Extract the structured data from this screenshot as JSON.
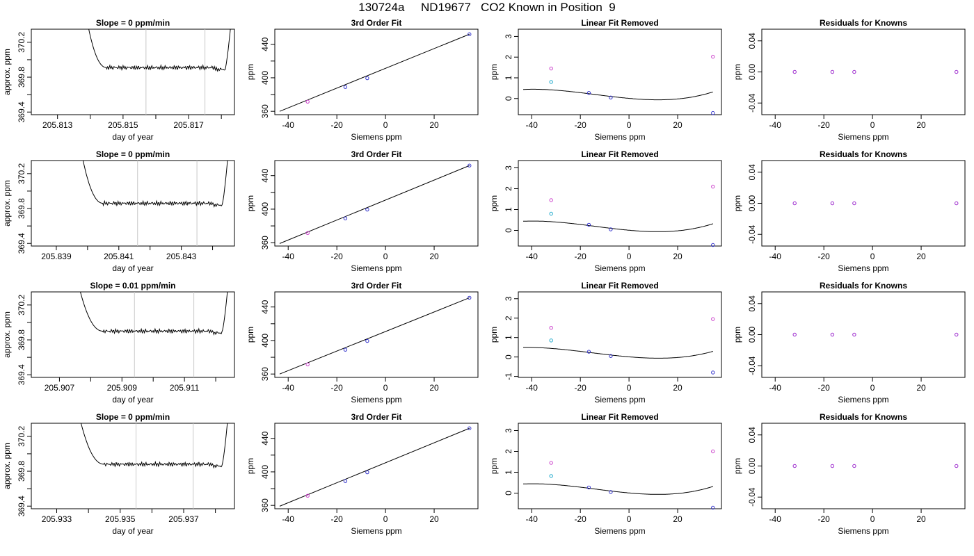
{
  "page": {
    "title": "130724a     ND19677   CO2 Known in Position  9"
  },
  "rows": [
    {
      "timeseries": {
        "title": "Slope =  0  ppm/min",
        "xlabel": "day of year",
        "ylabel": "approx. ppm",
        "xlim": [
          205.8122,
          205.8184
        ],
        "ylim": [
          369.37,
          370.35
        ],
        "xticks": [
          205.813,
          205.814,
          205.815,
          205.816,
          205.817,
          205.818
        ],
        "xticklabels": [
          "205.813",
          "",
          "205.815",
          "",
          "205.817",
          ""
        ],
        "yticks": [
          369.4,
          369.6,
          369.8,
          370.0,
          370.2
        ],
        "yticklabels": [
          "369.4",
          "",
          "369.8",
          "",
          "370.2"
        ],
        "marker_lines": [
          205.8157,
          205.8175
        ],
        "trace_start": 205.8139,
        "trace_end": 205.8183,
        "plateau_start": 205.8145,
        "plateau_end": 205.8181,
        "baseline": 369.91,
        "end_dip": 369.87
      },
      "fit": {
        "title": "3rd Order Fit",
        "xlabel": "Siemens ppm",
        "ylabel": "ppm",
        "xlim": [
          -45.5,
          38
        ],
        "ylim": [
          356,
          458
        ],
        "xticks": [
          -40,
          -20,
          0,
          20
        ],
        "yticks": [
          360,
          380,
          400,
          420,
          440
        ],
        "yticklabels": [
          "360",
          "",
          "400",
          "",
          "440"
        ],
        "line_x": [
          -43.5,
          34.5
        ],
        "line_y": [
          360,
          452
        ],
        "points": [
          {
            "x": -32.0,
            "y": 371.5,
            "color": "#cc44cc"
          },
          {
            "x": -16.5,
            "y": 389.0,
            "color": "#3333cc"
          },
          {
            "x": -7.5,
            "y": 399.5,
            "color": "#3333cc"
          },
          {
            "x": 34.5,
            "y": 452.0,
            "color": "#3333cc"
          }
        ]
      },
      "linfit": {
        "title": "Linear Fit Removed",
        "xlabel": "Siemens ppm",
        "ylabel": "ppm",
        "xlim": [
          -45.5,
          38
        ],
        "ylim": [
          -0.78,
          3.35
        ],
        "xticks": [
          -40,
          -20,
          0,
          20
        ],
        "yticks": [
          0,
          1,
          2,
          3
        ],
        "curve_coeffs": [
          0.008,
          -0.0106,
          0.00031,
          7.5e-06
        ],
        "curve_xrange": [
          -43.5,
          34.5
        ],
        "points": [
          {
            "x": -32.0,
            "y": 1.45,
            "color": "#cc44cc"
          },
          {
            "x": -32.0,
            "y": 0.8,
            "color": "#22aacc"
          },
          {
            "x": -16.5,
            "y": 0.27,
            "color": "#3333cc"
          },
          {
            "x": -7.5,
            "y": 0.05,
            "color": "#3333cc"
          },
          {
            "x": 34.5,
            "y": -0.7,
            "color": "#3333cc"
          },
          {
            "x": 34.5,
            "y": 2.02,
            "color": "#cc44cc"
          }
        ]
      },
      "resid": {
        "title": "Residuals for Knowns",
        "xlabel": "Siemens ppm",
        "ylabel": "ppm",
        "xlim": [
          -45.5,
          38
        ],
        "ylim": [
          -0.055,
          0.055
        ],
        "xticks": [
          -40,
          -20,
          0,
          20
        ],
        "yticks": [
          -0.04,
          0,
          0.04
        ],
        "yticklabels": [
          "-0.04",
          "0.00",
          "0.04"
        ],
        "points": [
          {
            "x": -32.0,
            "y": 0,
            "color": "#9922cc"
          },
          {
            "x": -16.5,
            "y": 0,
            "color": "#9922cc"
          },
          {
            "x": -7.5,
            "y": 0,
            "color": "#9922cc"
          },
          {
            "x": 34.5,
            "y": 0,
            "color": "#9922cc"
          }
        ]
      }
    },
    {
      "timeseries": {
        "title": "Slope =  0  ppm/min",
        "xlabel": "day of year",
        "ylabel": "approx. ppm",
        "xlim": [
          205.8382,
          205.8447
        ],
        "ylim": [
          369.37,
          370.35
        ],
        "xticks": [
          205.839,
          205.84,
          205.841,
          205.842,
          205.843,
          205.844
        ],
        "xticklabels": [
          "205.839",
          "",
          "205.841",
          "",
          "205.843",
          ""
        ],
        "yticks": [
          369.4,
          369.6,
          369.8,
          370.0,
          370.2
        ],
        "yticklabels": [
          "369.4",
          "",
          "369.8",
          "",
          "370.2"
        ],
        "marker_lines": [
          205.8416,
          205.8435
        ],
        "trace_start": 205.8398,
        "trace_end": 205.8445,
        "plateau_start": 205.8405,
        "plateau_end": 205.8443,
        "baseline": 369.86,
        "end_dip": 369.84
      },
      "fit": {
        "title": "3rd Order Fit",
        "xlabel": "Siemens ppm",
        "ylabel": "ppm",
        "xlim": [
          -45.5,
          38
        ],
        "ylim": [
          356,
          458
        ],
        "xticks": [
          -40,
          -20,
          0,
          20
        ],
        "yticks": [
          360,
          380,
          400,
          420,
          440
        ],
        "yticklabels": [
          "360",
          "",
          "400",
          "",
          "440"
        ],
        "line_x": [
          -43.5,
          34.5
        ],
        "line_y": [
          359,
          452
        ],
        "points": [
          {
            "x": -32.0,
            "y": 371.5,
            "color": "#cc44cc"
          },
          {
            "x": -16.5,
            "y": 389.0,
            "color": "#3333cc"
          },
          {
            "x": -7.5,
            "y": 399.5,
            "color": "#3333cc"
          },
          {
            "x": 34.5,
            "y": 452.0,
            "color": "#3333cc"
          }
        ]
      },
      "linfit": {
        "title": "Linear Fit Removed",
        "xlabel": "Siemens ppm",
        "ylabel": "ppm",
        "xlim": [
          -45.5,
          38
        ],
        "ylim": [
          -0.75,
          3.35
        ],
        "xticks": [
          -40,
          -20,
          0,
          20
        ],
        "yticks": [
          0,
          1,
          2,
          3
        ],
        "curve_coeffs": [
          0.008,
          -0.0106,
          0.00031,
          7.5e-06
        ],
        "curve_xrange": [
          -43.5,
          34.5
        ],
        "points": [
          {
            "x": -32.0,
            "y": 1.45,
            "color": "#cc44cc"
          },
          {
            "x": -32.0,
            "y": 0.8,
            "color": "#22aacc"
          },
          {
            "x": -16.5,
            "y": 0.27,
            "color": "#3333cc"
          },
          {
            "x": -7.5,
            "y": 0.05,
            "color": "#3333cc"
          },
          {
            "x": 34.5,
            "y": -0.7,
            "color": "#3333cc"
          },
          {
            "x": 34.5,
            "y": 2.1,
            "color": "#cc44cc"
          }
        ]
      },
      "resid": {
        "title": "Residuals for Knowns",
        "xlabel": "Siemens ppm",
        "ylabel": "ppm",
        "xlim": [
          -45.5,
          38
        ],
        "ylim": [
          -0.055,
          0.055
        ],
        "xticks": [
          -40,
          -20,
          0,
          20
        ],
        "yticks": [
          -0.04,
          0,
          0.04
        ],
        "yticklabels": [
          "-0.04",
          "0.00",
          "0.04"
        ],
        "points": [
          {
            "x": -32.0,
            "y": 0,
            "color": "#9922cc"
          },
          {
            "x": -16.5,
            "y": 0,
            "color": "#9922cc"
          },
          {
            "x": -7.5,
            "y": 0,
            "color": "#9922cc"
          },
          {
            "x": 34.5,
            "y": 0,
            "color": "#9922cc"
          }
        ]
      }
    },
    {
      "timeseries": {
        "title": "Slope =  0.01  ppm/min",
        "xlabel": "day of year",
        "ylabel": "approx. ppm",
        "xlim": [
          205.9061,
          205.9126
        ],
        "ylim": [
          369.37,
          370.35
        ],
        "xticks": [
          205.907,
          205.908,
          205.909,
          205.91,
          205.911,
          205.912
        ],
        "xticklabels": [
          "205.907",
          "",
          "205.909",
          "",
          "205.911",
          ""
        ],
        "yticks": [
          369.4,
          369.6,
          369.8,
          370.0,
          370.2
        ],
        "yticklabels": [
          "369.4",
          "",
          "369.8",
          "",
          "370.2"
        ],
        "marker_lines": [
          205.9094,
          205.9113
        ],
        "trace_start": 205.9076,
        "trace_end": 205.9124,
        "plateau_start": 205.9084,
        "plateau_end": 205.9122,
        "baseline": 369.9,
        "end_dip": 369.89
      },
      "fit": {
        "title": "3rd Order Fit",
        "xlabel": "Siemens ppm",
        "ylabel": "ppm",
        "xlim": [
          -45.5,
          38
        ],
        "ylim": [
          356,
          458
        ],
        "xticks": [
          -40,
          -20,
          0,
          20
        ],
        "yticks": [
          360,
          380,
          400,
          420,
          440
        ],
        "yticklabels": [
          "360",
          "",
          "400",
          "",
          "440"
        ],
        "line_x": [
          -43.5,
          34.5
        ],
        "line_y": [
          360,
          451
        ],
        "points": [
          {
            "x": -32.0,
            "y": 371.5,
            "color": "#cc44cc"
          },
          {
            "x": -16.5,
            "y": 389.0,
            "color": "#3333cc"
          },
          {
            "x": -7.5,
            "y": 399.5,
            "color": "#3333cc"
          },
          {
            "x": 34.5,
            "y": 451.0,
            "color": "#3333cc"
          }
        ]
      },
      "linfit": {
        "title": "Linear Fit Removed",
        "xlabel": "Siemens ppm",
        "ylabel": "ppm",
        "xlim": [
          -45.5,
          38
        ],
        "ylim": [
          -1.05,
          3.35
        ],
        "xticks": [
          -40,
          -20,
          0,
          20
        ],
        "yticks": [
          -1,
          0,
          1,
          2,
          3
        ],
        "curve_coeffs": [
          0.008,
          -0.0106,
          0.00031,
          6.8e-06
        ],
        "curve_xrange": [
          -43.5,
          34.5
        ],
        "points": [
          {
            "x": -32.0,
            "y": 1.5,
            "color": "#cc44cc"
          },
          {
            "x": -32.0,
            "y": 0.85,
            "color": "#22aacc"
          },
          {
            "x": -16.5,
            "y": 0.27,
            "color": "#3333cc"
          },
          {
            "x": -7.5,
            "y": 0.05,
            "color": "#3333cc"
          },
          {
            "x": 34.5,
            "y": -0.8,
            "color": "#3333cc"
          },
          {
            "x": 34.5,
            "y": 1.95,
            "color": "#cc44cc"
          }
        ]
      },
      "resid": {
        "title": "Residuals for Knowns",
        "xlabel": "Siemens ppm",
        "ylabel": "ppm",
        "xlim": [
          -45.5,
          38
        ],
        "ylim": [
          -0.055,
          0.055
        ],
        "xticks": [
          -40,
          -20,
          0,
          20
        ],
        "yticks": [
          -0.04,
          0,
          0.04
        ],
        "yticklabels": [
          "-0.04",
          "0.00",
          "0.04"
        ],
        "points": [
          {
            "x": -32.0,
            "y": 0,
            "color": "#9922cc"
          },
          {
            "x": -16.5,
            "y": 0,
            "color": "#9922cc"
          },
          {
            "x": -7.5,
            "y": 0,
            "color": "#9922cc"
          },
          {
            "x": 34.5,
            "y": 0,
            "color": "#9922cc"
          }
        ]
      }
    },
    {
      "timeseries": {
        "title": "Slope =  0  ppm/min",
        "xlabel": "day of year",
        "ylabel": "approx. ppm",
        "xlim": [
          205.9322,
          205.9386
        ],
        "ylim": [
          369.37,
          370.35
        ],
        "xticks": [
          205.933,
          205.934,
          205.935,
          205.936,
          205.937,
          205.938
        ],
        "xticklabels": [
          "205.933",
          "",
          "205.935",
          "",
          "205.937",
          ""
        ],
        "yticks": [
          369.4,
          369.6,
          369.8,
          370.0,
          370.2
        ],
        "yticklabels": [
          "369.4",
          "",
          "369.8",
          "",
          "370.2"
        ],
        "marker_lines": [
          205.9355,
          205.9373
        ],
        "trace_start": 205.9337,
        "trace_end": 205.9384,
        "plateau_start": 205.9345,
        "plateau_end": 205.9382,
        "baseline": 369.88,
        "end_dip": 369.86
      },
      "fit": {
        "title": "3rd Order Fit",
        "xlabel": "Siemens ppm",
        "ylabel": "ppm",
        "xlim": [
          -45.5,
          38
        ],
        "ylim": [
          356,
          458
        ],
        "xticks": [
          -40,
          -20,
          0,
          20
        ],
        "yticks": [
          360,
          380,
          400,
          420,
          440
        ],
        "yticklabels": [
          "360",
          "",
          "400",
          "",
          "440"
        ],
        "line_x": [
          -43.5,
          34.5
        ],
        "line_y": [
          359,
          452
        ],
        "points": [
          {
            "x": -32.0,
            "y": 371.5,
            "color": "#cc44cc"
          },
          {
            "x": -16.5,
            "y": 389.0,
            "color": "#3333cc"
          },
          {
            "x": -7.5,
            "y": 399.5,
            "color": "#3333cc"
          },
          {
            "x": 34.5,
            "y": 452.0,
            "color": "#3333cc"
          }
        ]
      },
      "linfit": {
        "title": "Linear Fit Removed",
        "xlabel": "Siemens ppm",
        "ylabel": "ppm",
        "xlim": [
          -45.5,
          38
        ],
        "ylim": [
          -0.75,
          3.35
        ],
        "xticks": [
          -40,
          -20,
          0,
          20
        ],
        "yticks": [
          0,
          1,
          2,
          3
        ],
        "curve_coeffs": [
          0.008,
          -0.0106,
          0.00031,
          7.5e-06
        ],
        "curve_xrange": [
          -43.5,
          34.5
        ],
        "points": [
          {
            "x": -32.0,
            "y": 1.45,
            "color": "#cc44cc"
          },
          {
            "x": -32.0,
            "y": 0.82,
            "color": "#22aacc"
          },
          {
            "x": -16.5,
            "y": 0.27,
            "color": "#3333cc"
          },
          {
            "x": -7.5,
            "y": 0.05,
            "color": "#3333cc"
          },
          {
            "x": 34.5,
            "y": -0.7,
            "color": "#3333cc"
          },
          {
            "x": 34.5,
            "y": 2.0,
            "color": "#cc44cc"
          }
        ]
      },
      "resid": {
        "title": "Residuals for Knowns",
        "xlabel": "Siemens ppm",
        "ylabel": "ppm",
        "xlim": [
          -45.5,
          38
        ],
        "ylim": [
          -0.055,
          0.055
        ],
        "xticks": [
          -40,
          -20,
          0,
          20
        ],
        "yticks": [
          -0.04,
          0,
          0.04
        ],
        "yticklabels": [
          "-0.04",
          "0.00",
          "0.04"
        ],
        "points": [
          {
            "x": -32.0,
            "y": 0,
            "color": "#9922cc"
          },
          {
            "x": -16.5,
            "y": 0,
            "color": "#9922cc"
          },
          {
            "x": -7.5,
            "y": 0,
            "color": "#9922cc"
          },
          {
            "x": 34.5,
            "y": 0,
            "color": "#9922cc"
          }
        ]
      }
    }
  ],
  "chart_data": [
    {
      "type": "line",
      "title": "Slope =  0  ppm/min",
      "xlabel": "day of year",
      "ylabel": "approx. ppm",
      "xlim": [
        205.8122,
        205.8184
      ],
      "ylim": [
        369.37,
        370.35
      ],
      "grid": false
    },
    {
      "type": "scatter",
      "title": "3rd Order Fit",
      "xlabel": "Siemens ppm",
      "ylabel": "ppm",
      "x": [
        -32.0,
        -16.5,
        -7.5,
        34.5
      ],
      "y": [
        371.5,
        389.0,
        399.5,
        452.0
      ],
      "xlim": [
        -45.5,
        38
      ],
      "ylim": [
        356,
        458
      ]
    },
    {
      "type": "scatter",
      "title": "Linear Fit Removed",
      "xlabel": "Siemens ppm",
      "ylabel": "ppm",
      "x": [
        -32.0,
        -32.0,
        -16.5,
        -7.5,
        34.5,
        34.5
      ],
      "y": [
        1.45,
        0.8,
        0.27,
        0.05,
        -0.7,
        2.02
      ],
      "xlim": [
        -45.5,
        38
      ],
      "ylim": [
        -0.78,
        3.35
      ]
    },
    {
      "type": "scatter",
      "title": "Residuals for Knowns",
      "xlabel": "Siemens ppm",
      "ylabel": "ppm",
      "x": [
        -32.0,
        -16.5,
        -7.5,
        34.5
      ],
      "y": [
        0,
        0,
        0,
        0
      ],
      "xlim": [
        -45.5,
        38
      ],
      "ylim": [
        -0.055,
        0.055
      ]
    }
  ]
}
